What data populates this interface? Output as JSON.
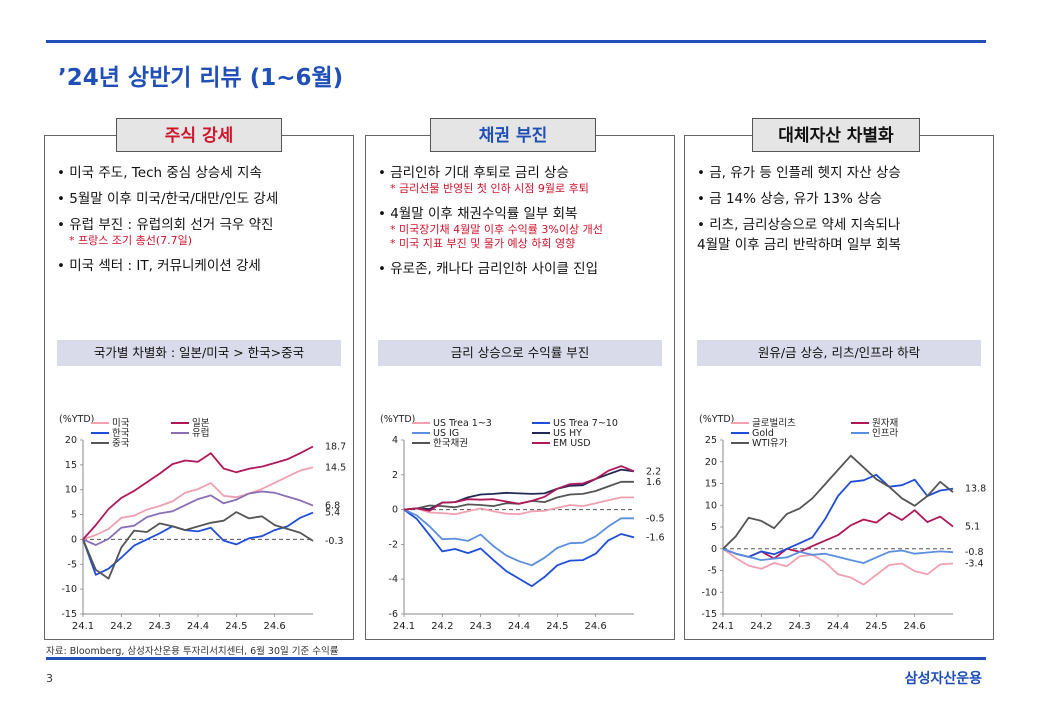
{
  "page": {
    "title": "’24년 상반기 리뷰 (1~6월)",
    "page_number": "3",
    "brand": "삼성자산운용",
    "source": "자료: Bloomberg, 삼성자산운용 투자리서치센터, 6월 30일 기준 수익률"
  },
  "colors": {
    "accent": "#1f4fb7",
    "red_note": "#d0142c",
    "banner": "#d9dbeb"
  },
  "panels": [
    {
      "title": "주식 강세",
      "title_color": "#d0142c",
      "bullets": [
        {
          "text": "• 미국 주도, Tech 중심 상승세 지속",
          "subs": []
        },
        {
          "text": "• 5월말 이후 미국/한국/대만/인도 강세",
          "subs": []
        },
        {
          "text": "• 유럽 부진 : 유럽의회 선거 극우 약진",
          "subs": [
            "* 프랑스 조기 총선(7.7일)"
          ]
        },
        {
          "text": "• 미국 섹터 : IT, 커뮤니케이션 강세",
          "subs": []
        }
      ],
      "banner": "국가별 차별화 : 일본/미국 > 한국>중국"
    },
    {
      "title": "채권 부진",
      "title_color": "#1f4fb7",
      "bullets": [
        {
          "text": "• 금리인하 기대 후퇴로 금리 상승",
          "subs": [
            "* 금리선물 반영된 첫 인하 시점 9월로 후퇴"
          ]
        },
        {
          "text": "• 4월말 이후 채권수익률 일부 회복",
          "subs": [
            "* 미국장기채 4월말 이후 수익률 3%이상 개선",
            "* 미국 지표 부진 및 물가 예상 하회 영향"
          ]
        },
        {
          "text": "• 유로존, 캐나다 금리인하 사이클 진입",
          "subs": []
        }
      ],
      "banner": "금리 상승으로 수익률 부진"
    },
    {
      "title": "대체자산 차별화",
      "title_color": "#111111",
      "bullets": [
        {
          "text": "• 금, 유가 등 인플레 헷지 자산 상승",
          "subs": []
        },
        {
          "text": "• 금 14% 상승, 유가 13% 상승",
          "subs": []
        },
        {
          "text": "• 리츠, 금리상승으로 약세 지속되나",
          "subs": []
        },
        {
          "text": "  4월말 이후 금리 반락하며 일부 회복",
          "subs": []
        }
      ],
      "banner": "원유/금 상승, 리츠/인프라 하락"
    }
  ],
  "chart_data": [
    {
      "type": "line",
      "title": "국가별 차별화 : 일본/미국 > 한국>중국",
      "ylabel": "(%YTD)",
      "ylim": [
        -15,
        20
      ],
      "yticks": [
        -15,
        -10,
        -5,
        0,
        5,
        10,
        15,
        20
      ],
      "xlabels": [
        "24.1",
        "24.2",
        "24.3",
        "24.4",
        "24.5",
        "24.6"
      ],
      "series": [
        {
          "name": "미국",
          "color": "#f0a0b0",
          "end_label": "14.5",
          "values": [
            0,
            1,
            2,
            4,
            5,
            6,
            6.5,
            8,
            9.5,
            10,
            11,
            9,
            8.5,
            9,
            10.5,
            11.5,
            12.5,
            13.5,
            14.5
          ]
        },
        {
          "name": "일본",
          "color": "#b0185a",
          "end_label": "18.7",
          "values": [
            0,
            3,
            6,
            8,
            10,
            11.5,
            13,
            15.5,
            16,
            15.5,
            17,
            14.5,
            13.5,
            14,
            15,
            15.5,
            16,
            17,
            18.7
          ]
        },
        {
          "name": "한국",
          "color": "#1f4fd8",
          "end_label": "5.4",
          "values": [
            0,
            -7,
            -6,
            -4,
            -1,
            0,
            1,
            3,
            2,
            1.5,
            2,
            0,
            -1,
            0,
            1,
            2,
            2.5,
            4,
            5.4
          ]
        },
        {
          "name": "유럽",
          "color": "#8a6fb8",
          "end_label": "6.8",
          "values": [
            0,
            -1,
            0,
            2,
            3,
            4.5,
            5,
            6,
            7,
            8,
            8.5,
            7.5,
            8,
            9,
            10,
            9.5,
            8.5,
            7.5,
            6.8
          ]
        },
        {
          "name": "중국",
          "color": "#555555",
          "end_label": "-0.3",
          "values": [
            0,
            -6,
            -8,
            -2,
            2,
            1.5,
            3,
            3,
            2,
            2.5,
            3,
            4,
            5.5,
            4,
            5,
            3,
            2,
            1,
            -0.3
          ]
        }
      ]
    },
    {
      "type": "line",
      "title": "금리 상승으로 수익률 부진",
      "ylabel": "(%YTD)",
      "ylim": [
        -6,
        4
      ],
      "yticks": [
        -6,
        -4,
        -2,
        0,
        2,
        4
      ],
      "xlabels": [
        "24.1",
        "24.2",
        "24.3",
        "24.4",
        "24.5",
        "24.6"
      ],
      "series": [
        {
          "name": "US Trea 1~3",
          "color": "#f0a0b0",
          "end_label": "",
          "values": [
            0,
            0.1,
            -0.2,
            -0.3,
            -0.2,
            -0.1,
            0,
            0,
            -0.2,
            -0.3,
            -0.2,
            0,
            0.1,
            0.2,
            0.3,
            0.4,
            0.5,
            0.6,
            0.7
          ]
        },
        {
          "name": "US Trea 7~10",
          "color": "#1f4fd8",
          "end_label": "-1.6",
          "values": [
            0,
            -0.5,
            -1.5,
            -2.5,
            -2.2,
            -2.5,
            -2.3,
            -2.8,
            -3.5,
            -4,
            -4.5,
            -3.8,
            -3.2,
            -3,
            -2.8,
            -2.5,
            -1.8,
            -1.5,
            -1.6
          ]
        },
        {
          "name": "US IG",
          "color": "#5b8fe0",
          "end_label": "-0.5",
          "values": [
            0,
            -0.3,
            -1,
            -1.8,
            -1.6,
            -1.8,
            -1.5,
            -2,
            -2.6,
            -3,
            -3.3,
            -2.7,
            -2.2,
            -2,
            -1.8,
            -1.5,
            -1,
            -0.6,
            -0.5
          ]
        },
        {
          "name": "US HY",
          "color": "#222a55",
          "end_label": "",
          "values": [
            0,
            0.1,
            0,
            0.3,
            0.5,
            0.7,
            0.8,
            1,
            1,
            0.9,
            0.8,
            1,
            1.2,
            1.3,
            1.5,
            1.8,
            2,
            2.2,
            2.2
          ]
        },
        {
          "name": "한국채권",
          "color": "#555555",
          "end_label": "1.6",
          "values": [
            0,
            0.1,
            0.2,
            0.1,
            0.2,
            0.3,
            0.2,
            0.3,
            0.4,
            0.3,
            0.4,
            0.5,
            0.7,
            0.8,
            1,
            1.1,
            1.3,
            1.5,
            1.6
          ]
        },
        {
          "name": "EM USD",
          "color": "#b0185a",
          "end_label": "2.2",
          "values": [
            0,
            0.1,
            -0.1,
            0.3,
            0.5,
            0.6,
            0.5,
            0.7,
            0.5,
            0.3,
            0.4,
            0.8,
            1.2,
            1.4,
            1.6,
            1.8,
            2.2,
            2.4,
            2.2
          ]
        }
      ]
    },
    {
      "type": "line",
      "title": "원유/금 상승, 리츠/인프라 하락",
      "ylabel": "(%YTD)",
      "ylim": [
        -15,
        25
      ],
      "yticks": [
        -15,
        -10,
        -5,
        0,
        5,
        10,
        15,
        20,
        25
      ],
      "xlabels": [
        "24.1",
        "24.2",
        "24.3",
        "24.4",
        "24.5",
        "24.6"
      ],
      "series": [
        {
          "name": "글로벌리츠",
          "color": "#f0a0b0",
          "end_label": "-3.4",
          "values": [
            0,
            -2,
            -4,
            -5,
            -3,
            -4,
            -2,
            -1,
            -3,
            -6,
            -7,
            -8,
            -6,
            -4,
            -3,
            -5,
            -6,
            -4,
            -3.4
          ]
        },
        {
          "name": "원자재",
          "color": "#b0185a",
          "end_label": "5.1",
          "values": [
            0,
            -1,
            -2,
            -1,
            -2,
            0,
            -1,
            1,
            2,
            3,
            5,
            7,
            6,
            8,
            7,
            9,
            6,
            7,
            5.1
          ]
        },
        {
          "name": "Gold",
          "color": "#1f4fd8",
          "end_label": "13.8",
          "values": [
            0,
            -1,
            -2,
            -1,
            -1,
            0,
            1,
            3,
            7,
            12,
            15,
            16,
            17,
            14,
            15,
            16,
            12,
            13,
            13.8
          ]
        },
        {
          "name": "인프라",
          "color": "#5b8fe0",
          "end_label": "-0.8",
          "values": [
            0,
            -1,
            -2,
            -3,
            -2,
            -2,
            -1,
            -1,
            -1,
            -2,
            -3,
            -3,
            -2,
            -1,
            0,
            -1,
            -1,
            -1,
            -0.8
          ]
        },
        {
          "name": "WTI유가",
          "color": "#555555",
          "end_label": "",
          "values": [
            0,
            3,
            7,
            6,
            5,
            8,
            9,
            12,
            15,
            18,
            21,
            19,
            16,
            14,
            12,
            10,
            12,
            15,
            13
          ]
        }
      ]
    }
  ]
}
